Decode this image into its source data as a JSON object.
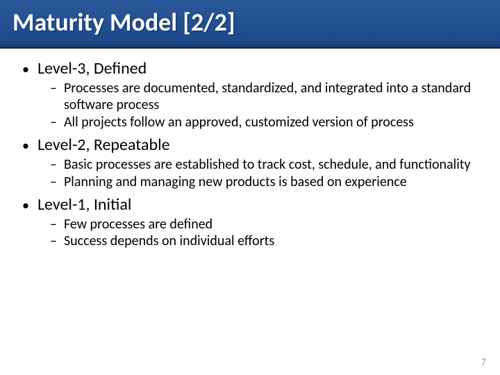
{
  "slide": {
    "title": "Maturity Model [2/2]",
    "page_number": "7",
    "header": {
      "gradient_top": "#2a5899",
      "gradient_mid": "#1e4a8c",
      "gradient_bottom": "#153a70",
      "border_color": "#0c2a52",
      "title_color": "#ffffff"
    },
    "typography": {
      "title_fontsize": 36,
      "heading_fontsize": 24,
      "sub_fontsize": 20,
      "font_family": "Calibri"
    },
    "bullets": {
      "level1_glyph": "•",
      "level2_glyph": "–"
    },
    "items": [
      {
        "heading": "Level-3, Defined",
        "subitems": [
          "Processes are documented, standardized, and integrated into a standard software process",
          "All projects follow an approved, customized version of process"
        ]
      },
      {
        "heading": "Level-2, Repeatable",
        "subitems": [
          "Basic processes are established to track cost, schedule, and functionality",
          "Planning and managing new products is based on experience"
        ]
      },
      {
        "heading": "Level-1, Initial",
        "subitems": [
          "Few processes are defined",
          "Success depends on individual efforts"
        ]
      }
    ]
  }
}
